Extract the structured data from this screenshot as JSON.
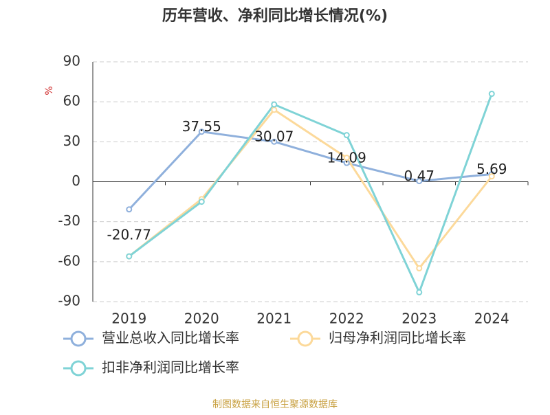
{
  "chart_data": {
    "type": "line",
    "title": "历年营收、净利同比增长情况(%)",
    "y_label": "%",
    "source": "制图数据来自恒生聚源数据库",
    "categories": [
      "2019",
      "2020",
      "2021",
      "2022",
      "2023",
      "2024"
    ],
    "series": [
      {
        "name": "营业总收入同比增长率",
        "color": "#8fb0dc",
        "values": [
          -20.77,
          37.55,
          30.07,
          14.09,
          0.47,
          5.69
        ],
        "show_labels": true
      },
      {
        "name": "归母净利润同比增长率",
        "color": "#fcd99a",
        "values": [
          -56,
          -13,
          54,
          18,
          -65,
          4
        ]
      },
      {
        "name": "扣非净利润同比增长率",
        "color": "#7fd3d6",
        "values": [
          -56,
          -15,
          58,
          35,
          -83,
          66
        ]
      }
    ],
    "ylim": [
      -90,
      90
    ],
    "yticks": [
      -90,
      -60,
      -30,
      0,
      30,
      60,
      90
    ],
    "grid": true
  }
}
